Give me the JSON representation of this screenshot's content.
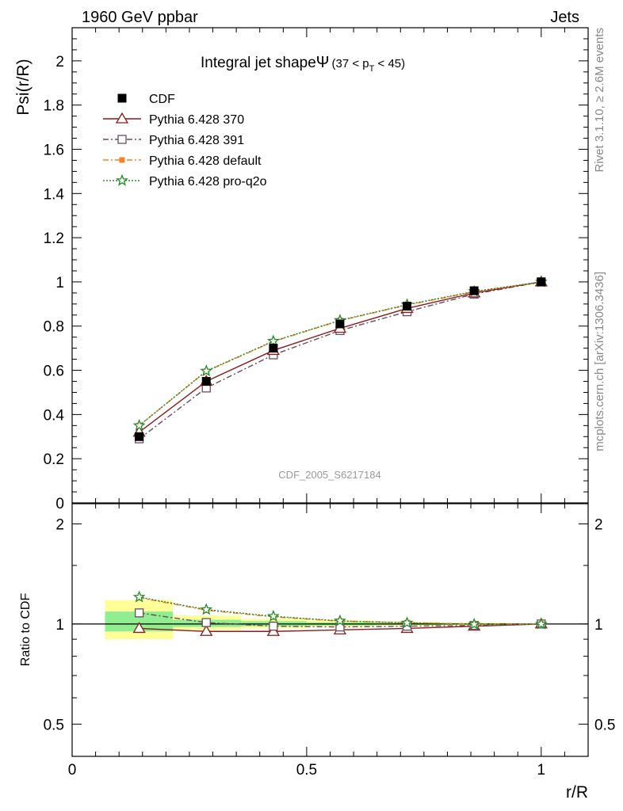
{
  "header": {
    "left": "1960 GeV ppbar",
    "right": "Jets"
  },
  "side_labels": {
    "rivet": "Rivet 3.1.10, ≥ 2.6M events",
    "mcplots": "mcplots.cern.ch [arXiv:1306.3436]"
  },
  "watermark": "CDF_2005_S6217184",
  "title": {
    "main": "Integral jet shape",
    "symbol": "Ψ",
    "range_open": "(37 < p",
    "range_sub": "T",
    "range_close": " < 45)"
  },
  "colors": {
    "cdf": "#000000",
    "p370": "#8b1a1a",
    "p391": "#6b4a5e",
    "pdefault": "#ff7f24",
    "pq2o": "#228b22",
    "band_inner": "#90ee90",
    "band_outer": "#ffff99"
  },
  "chart_data": [
    {
      "type": "line",
      "name": "main",
      "xlabel": "r/R",
      "ylabel": "Psi(r/R)",
      "xlim": [
        0,
        1.1
      ],
      "ylim": [
        0,
        2.15
      ],
      "x_ticks": [
        "0",
        "0.5",
        "1"
      ],
      "y_ticks": [
        "0",
        "0.2",
        "0.4",
        "0.6",
        "0.8",
        "1",
        "1.2",
        "1.4",
        "1.6",
        "1.8",
        "2"
      ],
      "x": [
        0.143,
        0.286,
        0.429,
        0.571,
        0.714,
        0.857,
        1.0
      ],
      "series": [
        {
          "name": "CDF",
          "marker": "square-filled",
          "style": "points",
          "values": [
            0.3,
            0.55,
            0.7,
            0.81,
            0.89,
            0.96,
            1.0
          ]
        },
        {
          "name": "Pythia 6.428 370",
          "marker": "triangle-open",
          "style": "solid",
          "values": [
            0.32,
            0.55,
            0.69,
            0.79,
            0.88,
            0.95,
            1.0
          ]
        },
        {
          "name": "Pythia 6.428 391",
          "marker": "square-open",
          "style": "dashdot",
          "values": [
            0.29,
            0.52,
            0.67,
            0.78,
            0.865,
            0.945,
            1.0
          ]
        },
        {
          "name": "Pythia 6.428 default",
          "marker": "square-small",
          "style": "dashdot",
          "values": [
            0.35,
            0.595,
            0.73,
            0.825,
            0.895,
            0.955,
            1.0
          ]
        },
        {
          "name": "Pythia 6.428 pro-q2o",
          "marker": "star",
          "style": "dotted",
          "values": [
            0.35,
            0.597,
            0.732,
            0.826,
            0.897,
            0.957,
            1.0
          ]
        }
      ]
    },
    {
      "type": "line",
      "name": "ratio",
      "xlabel": "r/R",
      "ylabel": "Ratio to CDF",
      "xlim": [
        0,
        1.1
      ],
      "ylim": [
        0.4,
        2.3
      ],
      "y_scale": "log",
      "x_ticks": [
        "0",
        "0.5",
        "1"
      ],
      "y_ticks": [
        "0.5",
        "1",
        "2"
      ],
      "x": [
        0.143,
        0.286,
        0.429,
        0.571,
        0.714,
        0.857,
        1.0
      ],
      "bands": [
        {
          "x_lo": 0.07,
          "x_hi": 0.215,
          "inner_lo": 0.95,
          "inner_hi": 1.09,
          "outer_lo": 0.9,
          "outer_hi": 1.18
        },
        {
          "x_lo": 0.215,
          "x_hi": 0.36,
          "inner_lo": 0.98,
          "inner_hi": 1.03,
          "outer_lo": 0.96,
          "outer_hi": 1.06
        },
        {
          "x_lo": 0.36,
          "x_hi": 0.5,
          "inner_lo": 0.985,
          "inner_hi": 1.02,
          "outer_lo": 0.97,
          "outer_hi": 1.035
        },
        {
          "x_lo": 0.5,
          "x_hi": 0.645,
          "inner_lo": 0.99,
          "inner_hi": 1.012,
          "outer_lo": 0.98,
          "outer_hi": 1.025
        },
        {
          "x_lo": 0.645,
          "x_hi": 0.785,
          "inner_lo": 0.994,
          "inner_hi": 1.008,
          "outer_lo": 0.988,
          "outer_hi": 1.015
        },
        {
          "x_lo": 0.785,
          "x_hi": 0.93,
          "inner_lo": 0.996,
          "inner_hi": 1.005,
          "outer_lo": 0.992,
          "outer_hi": 1.009
        }
      ],
      "series": [
        {
          "name": "Pythia 6.428 370",
          "values": [
            1.08,
            1.01,
            0.985,
            0.98,
            0.985,
            0.99,
            1.0
          ]
        },
        {
          "name": "Pythia 6.428 391",
          "values": [
            0.97,
            0.95,
            0.95,
            0.96,
            0.97,
            0.985,
            1.0
          ]
        },
        {
          "name": "Pythia 6.428 default",
          "values": [
            1.2,
            1.1,
            1.05,
            1.02,
            1.01,
            1.0,
            1.0
          ]
        },
        {
          "name": "Pythia 6.428 pro-q2o",
          "values": [
            1.205,
            1.105,
            1.055,
            1.022,
            1.008,
            0.998,
            1.0
          ]
        }
      ]
    }
  ]
}
